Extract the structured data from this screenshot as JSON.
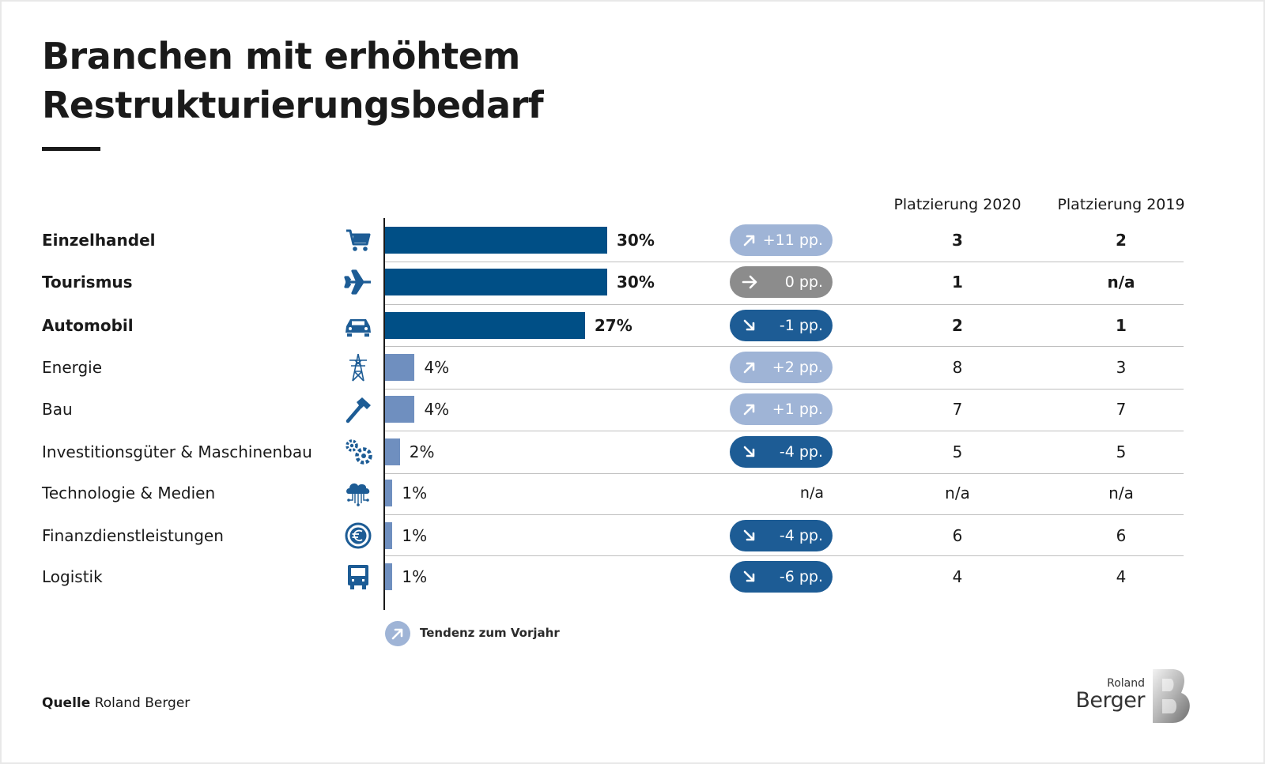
{
  "title_line1": "Branchen mit erhöhtem",
  "title_line2": "Restrukturierungsbedarf",
  "column_headers": {
    "rank_2020": "Platzierung 2020",
    "rank_2019": "Platzierung 2019"
  },
  "colors": {
    "bar_dark": "#004f86",
    "bar_light": "#6f8fbf",
    "pill_up": "#9fb4d6",
    "pill_flat": "#8c8c8c",
    "pill_down": "#1d5c95",
    "icon": "#1d5c95"
  },
  "chart_data": {
    "type": "bar",
    "orientation": "horizontal",
    "xlim": [
      0,
      30
    ],
    "rows": [
      {
        "category": "Einzelhandel",
        "icon": "shopping-cart-icon",
        "value": 30,
        "value_label": "30%",
        "tendency": "+11 pp.",
        "trend": "up",
        "rank_2020": "3",
        "rank_2019": "2",
        "emphasis": true
      },
      {
        "category": "Tourismus",
        "icon": "airplane-icon",
        "value": 30,
        "value_label": "30%",
        "tendency": "0 pp.",
        "trend": "flat",
        "rank_2020": "1",
        "rank_2019": "n/a",
        "emphasis": true
      },
      {
        "category": "Automobil",
        "icon": "car-icon",
        "value": 27,
        "value_label": "27%",
        "tendency": "-1 pp.",
        "trend": "down",
        "rank_2020": "2",
        "rank_2019": "1",
        "emphasis": true
      },
      {
        "category": "Energie",
        "icon": "power-tower-icon",
        "value": 4,
        "value_label": "4%",
        "tendency": "+2 pp.",
        "trend": "up",
        "rank_2020": "8",
        "rank_2019": "3",
        "emphasis": false
      },
      {
        "category": "Bau",
        "icon": "hammer-icon",
        "value": 4,
        "value_label": "4%",
        "tendency": "+1 pp.",
        "trend": "up",
        "rank_2020": "7",
        "rank_2019": "7",
        "emphasis": false
      },
      {
        "category": "Investitionsgüter & Maschinenbau",
        "icon": "gears-icon",
        "value": 2,
        "value_label": "2%",
        "tendency": "-4 pp.",
        "trend": "down",
        "rank_2020": "5",
        "rank_2019": "5",
        "emphasis": false
      },
      {
        "category": "Technologie & Medien",
        "icon": "cloud-network-icon",
        "value": 1,
        "value_label": "1%",
        "tendency": "n/a",
        "trend": "none",
        "rank_2020": "n/a",
        "rank_2019": "n/a",
        "emphasis": false
      },
      {
        "category": "Finanzdienstleistungen",
        "icon": "euro-coin-icon",
        "value": 1,
        "value_label": "1%",
        "tendency": "-4 pp.",
        "trend": "down",
        "rank_2020": "6",
        "rank_2019": "6",
        "emphasis": false
      },
      {
        "category": "Logistik",
        "icon": "truck-icon",
        "value": 1,
        "value_label": "1%",
        "tendency": "-6 pp.",
        "trend": "down",
        "rank_2020": "4",
        "rank_2019": "4",
        "emphasis": false
      }
    ]
  },
  "legend": {
    "text": "Tendenz zum Vorjahr"
  },
  "source": {
    "prefix": "Quelle",
    "text": "Roland Berger"
  },
  "logo": {
    "small": "Roland",
    "big": "Berger"
  }
}
